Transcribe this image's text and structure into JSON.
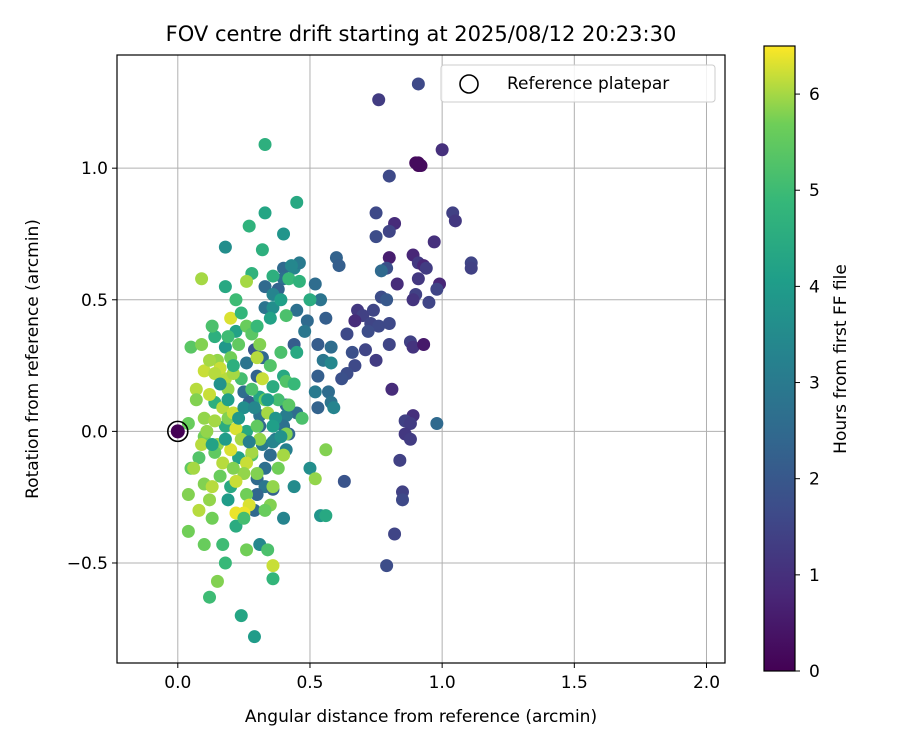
{
  "chart_data": {
    "type": "scatter",
    "title": "FOV centre drift starting at 2025/08/12 20:23:30",
    "xlabel": "Angular distance from reference (arcmin)",
    "ylabel": "Rotation from reference (arcmin)",
    "xlim": [
      -0.23,
      2.07
    ],
    "ylim": [
      -0.88,
      1.43
    ],
    "xticks": [
      0.0,
      0.5,
      1.0,
      1.5,
      2.0
    ],
    "xtick_labels": [
      "0.0",
      "0.5",
      "1.0",
      "1.5",
      "2.0"
    ],
    "yticks": [
      -0.5,
      0.0,
      0.5,
      1.0
    ],
    "ytick_labels": [
      "−0.5",
      "0.0",
      "0.5",
      "1.0"
    ],
    "grid": true,
    "legend": {
      "position": "top-right",
      "entries": [
        "Reference platepar"
      ]
    },
    "reference_point": {
      "x": 0.0,
      "y": 0.0
    },
    "colorbar": {
      "label": "Hours from first FF file",
      "min": 0,
      "max": 6.5,
      "ticks": [
        0,
        1,
        2,
        3,
        4,
        5,
        6
      ],
      "tick_labels": [
        "0",
        "1",
        "2",
        "3",
        "4",
        "5",
        "6"
      ],
      "colormap": "viridis"
    },
    "points": [
      [
        0.91,
        1.01,
        0.1
      ],
      [
        0.91,
        1.02,
        0.2
      ],
      [
        0.92,
        1.01,
        0.2
      ],
      [
        0.9,
        1.02,
        0.2
      ],
      [
        0.91,
        1.32,
        1.6
      ],
      [
        0.76,
        1.26,
        1.3
      ],
      [
        1.0,
        1.07,
        1.0
      ],
      [
        0.8,
        0.97,
        1.6
      ],
      [
        0.75,
        0.83,
        1.6
      ],
      [
        0.82,
        0.79,
        0.9
      ],
      [
        0.8,
        0.76,
        1.5
      ],
      [
        0.75,
        0.74,
        1.7
      ],
      [
        1.04,
        0.83,
        1.4
      ],
      [
        1.05,
        0.8,
        1.2
      ],
      [
        0.97,
        0.72,
        1.0
      ],
      [
        0.89,
        0.67,
        0.8
      ],
      [
        0.8,
        0.66,
        0.6
      ],
      [
        0.91,
        0.64,
        1.2
      ],
      [
        0.93,
        0.63,
        0.8
      ],
      [
        0.94,
        0.62,
        1.3
      ],
      [
        1.11,
        0.64,
        1.5
      ],
      [
        1.11,
        0.62,
        1.4
      ],
      [
        0.79,
        0.62,
        1.8
      ],
      [
        0.77,
        0.61,
        2.5
      ],
      [
        0.91,
        0.58,
        1.2
      ],
      [
        0.83,
        0.56,
        0.9
      ],
      [
        0.99,
        0.56,
        0.8
      ],
      [
        0.98,
        0.54,
        1.5
      ],
      [
        0.9,
        0.52,
        1.4
      ],
      [
        0.89,
        0.5,
        1.1
      ],
      [
        0.95,
        0.49,
        1.5
      ],
      [
        0.77,
        0.51,
        1.7
      ],
      [
        0.79,
        0.5,
        2.0
      ],
      [
        0.74,
        0.46,
        1.5
      ],
      [
        0.68,
        0.46,
        1.2
      ],
      [
        0.7,
        0.44,
        1.4
      ],
      [
        0.73,
        0.41,
        1.5
      ],
      [
        0.76,
        0.4,
        1.6
      ],
      [
        0.8,
        0.41,
        1.6
      ],
      [
        0.72,
        0.38,
        1.7
      ],
      [
        0.67,
        0.42,
        0.9
      ],
      [
        0.64,
        0.37,
        1.6
      ],
      [
        0.71,
        0.31,
        1.5
      ],
      [
        0.66,
        0.3,
        1.8
      ],
      [
        0.75,
        0.27,
        1.3
      ],
      [
        0.88,
        0.34,
        1.4
      ],
      [
        0.89,
        0.32,
        1.1
      ],
      [
        0.93,
        0.33,
        0.5
      ],
      [
        0.8,
        0.33,
        1.5
      ],
      [
        0.67,
        0.25,
        1.6
      ],
      [
        0.64,
        0.22,
        1.7
      ],
      [
        0.62,
        0.2,
        1.8
      ],
      [
        0.81,
        0.16,
        0.9
      ],
      [
        0.89,
        0.06,
        1.0
      ],
      [
        0.86,
        0.04,
        1.4
      ],
      [
        0.88,
        0.03,
        1.3
      ],
      [
        0.86,
        -0.01,
        1.2
      ],
      [
        0.88,
        -0.03,
        1.3
      ],
      [
        0.98,
        0.03,
        2.5
      ],
      [
        0.84,
        -0.11,
        1.4
      ],
      [
        0.85,
        -0.23,
        1.4
      ],
      [
        0.85,
        -0.26,
        1.6
      ],
      [
        0.82,
        -0.39,
        1.5
      ],
      [
        0.79,
        -0.51,
        1.7
      ],
      [
        0.63,
        -0.19,
        1.9
      ],
      [
        0.6,
        0.66,
        2.3
      ],
      [
        0.61,
        0.63,
        2.2
      ],
      [
        0.56,
        0.43,
        2.2
      ],
      [
        0.52,
        0.56,
        2.6
      ],
      [
        0.54,
        0.5,
        2.8
      ],
      [
        0.49,
        0.42,
        2.5
      ],
      [
        0.45,
        0.46,
        2.7
      ],
      [
        0.48,
        0.38,
        2.9
      ],
      [
        0.44,
        0.33,
        2.1
      ],
      [
        0.4,
        0.62,
        2.5
      ],
      [
        0.4,
        0.58,
        2.7
      ],
      [
        0.44,
        0.62,
        3.3
      ],
      [
        0.46,
        0.64,
        3.0
      ],
      [
        0.43,
        0.63,
        3.4
      ],
      [
        0.38,
        0.54,
        2.3
      ],
      [
        0.33,
        0.55,
        2.5
      ],
      [
        0.36,
        0.52,
        3.3
      ],
      [
        0.33,
        0.47,
        2.8
      ],
      [
        0.36,
        0.47,
        3.6
      ],
      [
        0.53,
        0.33,
        2.1
      ],
      [
        0.58,
        0.32,
        2.6
      ],
      [
        0.55,
        0.27,
        2.9
      ],
      [
        0.58,
        0.26,
        3.4
      ],
      [
        0.53,
        0.21,
        2.2
      ],
      [
        0.57,
        0.15,
        2.6
      ],
      [
        0.52,
        0.15,
        3.0
      ],
      [
        0.58,
        0.11,
        2.8
      ],
      [
        0.59,
        0.09,
        3.3
      ],
      [
        0.53,
        0.09,
        2.3
      ],
      [
        0.45,
        0.07,
        2.6
      ],
      [
        0.41,
        0.1,
        2.4
      ],
      [
        0.41,
        0.06,
        3.1
      ],
      [
        0.4,
        0.02,
        2.7
      ],
      [
        0.42,
        -0.01,
        2.4
      ],
      [
        0.37,
        -0.03,
        3.0
      ],
      [
        0.41,
        -0.07,
        3.2
      ],
      [
        0.29,
        0.31,
        2.0
      ],
      [
        0.32,
        0.28,
        2.5
      ],
      [
        0.26,
        0.26,
        2.8
      ],
      [
        0.3,
        0.21,
        2.3
      ],
      [
        0.25,
        0.15,
        2.6
      ],
      [
        0.27,
        0.11,
        2.2
      ],
      [
        0.31,
        0.06,
        2.8
      ],
      [
        0.31,
        0.02,
        2.4
      ],
      [
        0.32,
        -0.05,
        3.0
      ],
      [
        0.35,
        -0.09,
        2.6
      ],
      [
        0.33,
        -0.14,
        2.7
      ],
      [
        0.3,
        -0.18,
        2.5
      ],
      [
        0.33,
        -0.21,
        2.9
      ],
      [
        0.3,
        -0.24,
        2.4
      ],
      [
        0.36,
        -0.22,
        2.3
      ],
      [
        0.29,
        -0.3,
        2.5
      ],
      [
        0.36,
        -0.04,
        3.3
      ],
      [
        0.31,
        -0.43,
        3.4
      ],
      [
        0.4,
        -0.33,
        3.3
      ],
      [
        0.44,
        -0.21,
        3.5
      ],
      [
        0.5,
        -0.14,
        3.6
      ],
      [
        0.54,
        -0.32,
        3.8
      ],
      [
        0.29,
        -0.78,
        4.0
      ],
      [
        0.24,
        -0.7,
        4.3
      ],
      [
        0.33,
        1.09,
        4.6
      ],
      [
        0.45,
        0.87,
        4.4
      ],
      [
        0.33,
        0.83,
        4.3
      ],
      [
        0.27,
        0.78,
        4.7
      ],
      [
        0.4,
        0.75,
        3.8
      ],
      [
        0.32,
        0.69,
        4.6
      ],
      [
        0.18,
        0.7,
        3.6
      ],
      [
        0.28,
        0.6,
        4.7
      ],
      [
        0.42,
        0.58,
        4.9
      ],
      [
        0.46,
        0.57,
        4.7
      ],
      [
        0.5,
        0.5,
        4.5
      ],
      [
        0.18,
        0.55,
        4.4
      ],
      [
        0.22,
        0.5,
        5.0
      ],
      [
        0.14,
        0.36,
        4.6
      ],
      [
        0.18,
        0.32,
        3.9
      ],
      [
        0.39,
        0.3,
        5.2
      ],
      [
        0.45,
        0.3,
        4.4
      ],
      [
        0.22,
        0.38,
        4.2
      ],
      [
        0.4,
        0.21,
        4.4
      ],
      [
        0.41,
        0.19,
        5.3
      ],
      [
        0.36,
        0.17,
        4.5
      ],
      [
        0.24,
        0.2,
        5.1
      ],
      [
        0.31,
        0.13,
        4.3
      ],
      [
        0.14,
        0.11,
        4.6
      ],
      [
        0.18,
        0.02,
        4.5
      ],
      [
        0.26,
        0.0,
        4.4
      ],
      [
        0.23,
        -0.1,
        4.2
      ],
      [
        0.28,
        -0.09,
        5.3
      ],
      [
        0.2,
        -0.21,
        4.4
      ],
      [
        0.19,
        -0.26,
        4.0
      ],
      [
        0.22,
        -0.36,
        4.5
      ],
      [
        0.17,
        -0.43,
        5.0
      ],
      [
        0.36,
        -0.56,
        4.8
      ],
      [
        0.18,
        -0.5,
        4.9
      ],
      [
        0.12,
        -0.63,
        5.0
      ],
      [
        0.15,
        -0.57,
        5.8
      ],
      [
        0.26,
        -0.45,
        5.7
      ],
      [
        0.36,
        -0.51,
        6.2
      ],
      [
        0.34,
        -0.45,
        5.2
      ],
      [
        0.1,
        -0.43,
        5.6
      ],
      [
        0.04,
        -0.38,
        5.7
      ],
      [
        0.04,
        -0.24,
        5.8
      ],
      [
        0.12,
        -0.26,
        5.9
      ],
      [
        0.13,
        -0.33,
        5.7
      ],
      [
        0.08,
        -0.3,
        6.1
      ],
      [
        0.1,
        -0.2,
        5.8
      ],
      [
        0.05,
        -0.14,
        5.5
      ],
      [
        0.08,
        -0.1,
        5.3
      ],
      [
        0.06,
        -0.14,
        6.0
      ],
      [
        0.1,
        -0.02,
        5.7
      ],
      [
        0.15,
        -0.05,
        5.9
      ],
      [
        0.04,
        0.03,
        5.6
      ],
      [
        0.1,
        0.05,
        5.9
      ],
      [
        0.07,
        0.16,
        6.1
      ],
      [
        0.07,
        0.12,
        5.8
      ],
      [
        0.1,
        0.23,
        6.2
      ],
      [
        0.05,
        0.32,
        5.4
      ],
      [
        0.09,
        0.33,
        5.8
      ],
      [
        0.09,
        0.58,
        6.0
      ],
      [
        0.2,
        0.43,
        6.3
      ],
      [
        0.26,
        0.57,
        6.0
      ],
      [
        0.26,
        0.4,
        5.6
      ],
      [
        0.28,
        0.37,
        5.4
      ],
      [
        0.31,
        0.33,
        5.8
      ],
      [
        0.3,
        0.28,
        6.1
      ],
      [
        0.32,
        0.2,
        6.2
      ],
      [
        0.33,
        0.12,
        5.6
      ],
      [
        0.34,
        0.07,
        6.0
      ],
      [
        0.3,
        0.02,
        5.5
      ],
      [
        0.31,
        -0.03,
        5.9
      ],
      [
        0.28,
        -0.08,
        6.0
      ],
      [
        0.26,
        -0.12,
        6.2
      ],
      [
        0.3,
        -0.16,
        5.8
      ],
      [
        0.25,
        -0.16,
        5.9
      ],
      [
        0.22,
        -0.19,
        6.2
      ],
      [
        0.26,
        -0.24,
        5.7
      ],
      [
        0.27,
        -0.28,
        6.3
      ],
      [
        0.25,
        -0.31,
        6.4
      ],
      [
        0.22,
        -0.31,
        6.4
      ],
      [
        0.36,
        -0.21,
        5.9
      ],
      [
        0.38,
        -0.14,
        5.7
      ],
      [
        0.35,
        -0.28,
        5.8
      ],
      [
        0.4,
        -0.09,
        6.0
      ],
      [
        0.41,
        -0.01,
        5.8
      ],
      [
        0.18,
        0.2,
        6.1
      ],
      [
        0.19,
        0.16,
        5.9
      ],
      [
        0.21,
        0.22,
        6.0
      ],
      [
        0.2,
        0.28,
        5.7
      ],
      [
        0.23,
        0.33,
        5.5
      ],
      [
        0.15,
        0.27,
        5.9
      ],
      [
        0.16,
        0.24,
        6.2
      ],
      [
        0.14,
        0.22,
        6.1
      ],
      [
        0.12,
        0.27,
        6.0
      ],
      [
        0.17,
        0.09,
        6.1
      ],
      [
        0.19,
        0.05,
        5.8
      ],
      [
        0.21,
        0.07,
        6.2
      ],
      [
        0.22,
        0.01,
        6.3
      ],
      [
        0.24,
        -0.03,
        6.0
      ],
      [
        0.2,
        -0.07,
        6.3
      ],
      [
        0.17,
        -0.12,
        6.1
      ],
      [
        0.21,
        -0.14,
        5.8
      ],
      [
        0.12,
        0.14,
        6.2
      ],
      [
        0.14,
        0.04,
        6.0
      ],
      [
        0.11,
        0.0,
        5.9
      ],
      [
        0.09,
        -0.05,
        6.1
      ],
      [
        0.14,
        -0.08,
        5.5
      ],
      [
        0.16,
        -0.17,
        5.6
      ],
      [
        0.13,
        -0.21,
        6.1
      ],
      [
        0.28,
        0.16,
        5.2
      ],
      [
        0.35,
        0.25,
        5.3
      ],
      [
        0.38,
        0.12,
        5.1
      ],
      [
        0.42,
        0.1,
        5.4
      ],
      [
        0.44,
        0.18,
        4.9
      ],
      [
        0.47,
        0.05,
        5.2
      ],
      [
        0.56,
        -0.07,
        5.8
      ],
      [
        0.52,
        -0.18,
        5.9
      ],
      [
        0.56,
        -0.32,
        4.4
      ],
      [
        0.24,
        0.45,
        4.8
      ],
      [
        0.3,
        0.4,
        4.9
      ],
      [
        0.35,
        0.43,
        4.2
      ],
      [
        0.13,
        0.4,
        5.2
      ],
      [
        0.19,
        0.36,
        5.0
      ],
      [
        0.36,
        0.59,
        4.6
      ],
      [
        0.39,
        0.5,
        4.1
      ],
      [
        0.41,
        0.44,
        5.2
      ],
      [
        0.25,
        0.09,
        3.6
      ],
      [
        0.27,
        -0.04,
        3.2
      ],
      [
        0.29,
        0.09,
        3.4
      ],
      [
        0.34,
        0.12,
        4.0
      ],
      [
        0.37,
        0.05,
        3.8
      ],
      [
        0.39,
        -0.02,
        3.7
      ],
      [
        0.36,
        0.02,
        4.1
      ],
      [
        0.23,
        0.05,
        3.9
      ],
      [
        0.18,
        -0.03,
        4.0
      ],
      [
        0.19,
        0.12,
        4.1
      ],
      [
        0.16,
        0.18,
        3.7
      ],
      [
        0.13,
        -0.05,
        4.2
      ],
      [
        0.21,
        0.25,
        4.6
      ],
      [
        0.33,
        -0.3,
        5.6
      ],
      [
        0.25,
        -0.33,
        5.1
      ]
    ]
  }
}
